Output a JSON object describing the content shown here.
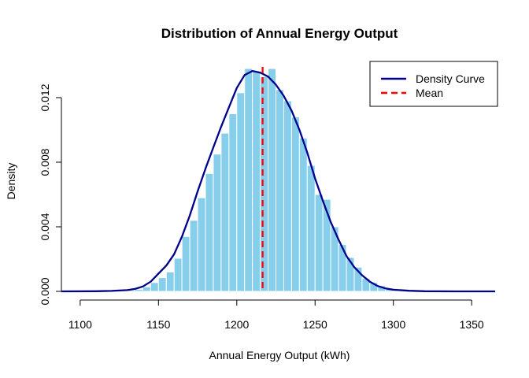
{
  "chart_data": {
    "type": "bar",
    "title": "Distribution of Annual Energy Output",
    "xlabel": "Annual Energy Output (kWh)",
    "ylabel": "Density",
    "xlim": [
      1088,
      1365
    ],
    "ylim": [
      0,
      0.0139
    ],
    "x_ticks": [
      1100,
      1150,
      1200,
      1250,
      1300,
      1350
    ],
    "x_tick_labels": [
      "1100",
      "1150",
      "1200",
      "1250",
      "1300",
      "1350"
    ],
    "y_ticks": [
      0,
      0.004,
      0.008,
      0.012
    ],
    "y_tick_labels": [
      "0.000",
      "0.004",
      "0.008",
      "0.012"
    ],
    "histogram": {
      "name": "",
      "color": "#87CEEB",
      "border_color": "#ffffff",
      "bin_width": 5,
      "bins": [
        {
          "x0": 1120,
          "density": 2e-05
        },
        {
          "x0": 1125,
          "density": 4e-05
        },
        {
          "x0": 1130,
          "density": 8e-05
        },
        {
          "x0": 1135,
          "density": 0.00013
        },
        {
          "x0": 1140,
          "density": 0.00028
        },
        {
          "x0": 1145,
          "density": 0.00055
        },
        {
          "x0": 1150,
          "density": 0.00085
        },
        {
          "x0": 1155,
          "density": 0.0012
        },
        {
          "x0": 1160,
          "density": 0.00205
        },
        {
          "x0": 1165,
          "density": 0.0034
        },
        {
          "x0": 1170,
          "density": 0.0044
        },
        {
          "x0": 1175,
          "density": 0.0058
        },
        {
          "x0": 1180,
          "density": 0.0073
        },
        {
          "x0": 1185,
          "density": 0.0085
        },
        {
          "x0": 1190,
          "density": 0.0098
        },
        {
          "x0": 1195,
          "density": 0.011
        },
        {
          "x0": 1200,
          "density": 0.0123
        },
        {
          "x0": 1205,
          "density": 0.0138
        },
        {
          "x0": 1210,
          "density": 0.0136
        },
        {
          "x0": 1215,
          "density": 0.0133
        },
        {
          "x0": 1220,
          "density": 0.0138
        },
        {
          "x0": 1225,
          "density": 0.0125
        },
        {
          "x0": 1230,
          "density": 0.0118
        },
        {
          "x0": 1235,
          "density": 0.0108
        },
        {
          "x0": 1240,
          "density": 0.0095
        },
        {
          "x0": 1245,
          "density": 0.0078
        },
        {
          "x0": 1250,
          "density": 0.006
        },
        {
          "x0": 1255,
          "density": 0.0057
        },
        {
          "x0": 1260,
          "density": 0.004
        },
        {
          "x0": 1265,
          "density": 0.0029
        },
        {
          "x0": 1270,
          "density": 0.0021
        },
        {
          "x0": 1275,
          "density": 0.0015
        },
        {
          "x0": 1280,
          "density": 0.0008
        },
        {
          "x0": 1285,
          "density": 0.00055
        },
        {
          "x0": 1290,
          "density": 0.00035
        },
        {
          "x0": 1295,
          "density": 0.00015
        },
        {
          "x0": 1300,
          "density": 8e-05
        },
        {
          "x0": 1305,
          "density": 4e-05
        },
        {
          "x0": 1310,
          "density": 2e-05
        }
      ]
    },
    "series": [
      {
        "name": "Density Curve",
        "type": "line",
        "color": "#00008B",
        "x": [
          1088,
          1110,
          1120,
          1130,
          1135,
          1140,
          1145,
          1150,
          1155,
          1160,
          1165,
          1170,
          1175,
          1180,
          1185,
          1190,
          1195,
          1200,
          1205,
          1210,
          1215,
          1220,
          1225,
          1230,
          1235,
          1240,
          1245,
          1250,
          1255,
          1260,
          1265,
          1270,
          1275,
          1280,
          1285,
          1290,
          1295,
          1300,
          1310,
          1320,
          1340,
          1365
        ],
        "y": [
          0,
          1e-05,
          3e-05,
          8e-05,
          0.00015,
          0.0003,
          0.0006,
          0.0011,
          0.0016,
          0.0023,
          0.0034,
          0.0047,
          0.0062,
          0.0076,
          0.0089,
          0.0102,
          0.0114,
          0.0126,
          0.0134,
          0.01365,
          0.01355,
          0.0133,
          0.0128,
          0.0121,
          0.0112,
          0.01,
          0.0086,
          0.007,
          0.0056,
          0.0043,
          0.0032,
          0.0022,
          0.0015,
          0.001,
          0.0006,
          0.00033,
          0.00018,
          0.0001,
          4e-05,
          1e-05,
          0,
          0
        ]
      },
      {
        "name": "Mean",
        "type": "vline",
        "color": "#FF0000",
        "x": 1216.5
      }
    ],
    "legend": {
      "position": "top-right",
      "entries": [
        {
          "label": "Density Curve",
          "color": "#00008B",
          "style": "solid"
        },
        {
          "label": "Mean",
          "color": "#FF0000",
          "style": "dashed"
        }
      ]
    },
    "grid": false
  }
}
